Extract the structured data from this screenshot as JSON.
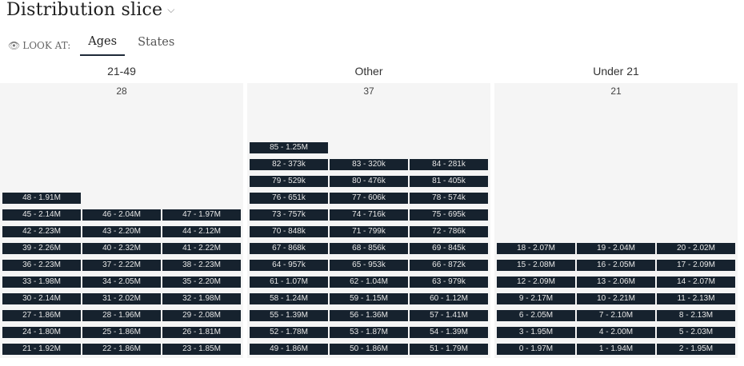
{
  "header": {
    "title": "Distribution slice",
    "caret_icon": "chevron-down-icon",
    "look_at_label": "LOOK AT:",
    "eye_icon": "eye-icon",
    "tabs": [
      {
        "label": "Ages",
        "active": true
      },
      {
        "label": "States",
        "active": false
      }
    ]
  },
  "colors": {
    "cell": "#16222e",
    "panel": "#f5f5f5",
    "accent": "#1e2a38"
  },
  "chart_data": {
    "type": "bar",
    "stacking": "grid-3-wide",
    "groups": [
      {
        "name": "21-49",
        "count": "28",
        "items": [
          {
            "label": "21 - 1.92M",
            "value": 1920000
          },
          {
            "label": "22 - 1.86M",
            "value": 1860000
          },
          {
            "label": "23 - 1.85M",
            "value": 1850000
          },
          {
            "label": "24 - 1.80M",
            "value": 1800000
          },
          {
            "label": "25 - 1.86M",
            "value": 1860000
          },
          {
            "label": "26 - 1.81M",
            "value": 1810000
          },
          {
            "label": "27 - 1.86M",
            "value": 1860000
          },
          {
            "label": "28 - 1.96M",
            "value": 1960000
          },
          {
            "label": "29 - 2.08M",
            "value": 2080000
          },
          {
            "label": "30 - 2.14M",
            "value": 2140000
          },
          {
            "label": "31 - 2.02M",
            "value": 2020000
          },
          {
            "label": "32 - 1.98M",
            "value": 1980000
          },
          {
            "label": "33 - 1.98M",
            "value": 1980000
          },
          {
            "label": "34 - 2.05M",
            "value": 2050000
          },
          {
            "label": "35 - 2.20M",
            "value": 2200000
          },
          {
            "label": "36 - 2.23M",
            "value": 2230000
          },
          {
            "label": "37 - 2.22M",
            "value": 2220000
          },
          {
            "label": "38 - 2.23M",
            "value": 2230000
          },
          {
            "label": "39 - 2.26M",
            "value": 2260000
          },
          {
            "label": "40 - 2.32M",
            "value": 2320000
          },
          {
            "label": "41 - 2.22M",
            "value": 2220000
          },
          {
            "label": "42 - 2.23M",
            "value": 2230000
          },
          {
            "label": "43 - 2.20M",
            "value": 2200000
          },
          {
            "label": "44 - 2.12M",
            "value": 2120000
          },
          {
            "label": "45 - 2.14M",
            "value": 2140000
          },
          {
            "label": "46 - 2.04M",
            "value": 2040000
          },
          {
            "label": "47 - 1.97M",
            "value": 1970000
          },
          {
            "label": "48 - 1.91M",
            "value": 1910000
          }
        ]
      },
      {
        "name": "Other",
        "count": "37",
        "items": [
          {
            "label": "49 - 1.86M",
            "value": 1860000
          },
          {
            "label": "50 - 1.86M",
            "value": 1860000
          },
          {
            "label": "51 - 1.79M",
            "value": 1790000
          },
          {
            "label": "52 - 1.78M",
            "value": 1780000
          },
          {
            "label": "53 - 1.87M",
            "value": 1870000
          },
          {
            "label": "54 - 1.39M",
            "value": 1390000
          },
          {
            "label": "55 - 1.39M",
            "value": 1390000
          },
          {
            "label": "56 - 1.36M",
            "value": 1360000
          },
          {
            "label": "57 - 1.41M",
            "value": 1410000
          },
          {
            "label": "58 - 1.24M",
            "value": 1240000
          },
          {
            "label": "59 - 1.15M",
            "value": 1150000
          },
          {
            "label": "60 - 1.12M",
            "value": 1120000
          },
          {
            "label": "61 - 1.07M",
            "value": 1070000
          },
          {
            "label": "62 - 1.04M",
            "value": 1040000
          },
          {
            "label": "63 - 979k",
            "value": 979000
          },
          {
            "label": "64 - 957k",
            "value": 957000
          },
          {
            "label": "65 - 953k",
            "value": 953000
          },
          {
            "label": "66 - 872k",
            "value": 872000
          },
          {
            "label": "67 - 868k",
            "value": 868000
          },
          {
            "label": "68 - 856k",
            "value": 856000
          },
          {
            "label": "69 - 845k",
            "value": 845000
          },
          {
            "label": "70 - 848k",
            "value": 848000
          },
          {
            "label": "71 - 799k",
            "value": 799000
          },
          {
            "label": "72 - 786k",
            "value": 786000
          },
          {
            "label": "73 - 757k",
            "value": 757000
          },
          {
            "label": "74 - 716k",
            "value": 716000
          },
          {
            "label": "75 - 695k",
            "value": 695000
          },
          {
            "label": "76 - 651k",
            "value": 651000
          },
          {
            "label": "77 - 606k",
            "value": 606000
          },
          {
            "label": "78 - 574k",
            "value": 574000
          },
          {
            "label": "79 - 529k",
            "value": 529000
          },
          {
            "label": "80 - 476k",
            "value": 476000
          },
          {
            "label": "81 - 405k",
            "value": 405000
          },
          {
            "label": "82 - 373k",
            "value": 373000
          },
          {
            "label": "83 - 320k",
            "value": 320000
          },
          {
            "label": "84 - 281k",
            "value": 281000
          },
          {
            "label": "85 - 1.25M",
            "value": 1250000
          }
        ]
      },
      {
        "name": "Under 21",
        "count": "21",
        "items": [
          {
            "label": "0 - 1.97M",
            "value": 1970000
          },
          {
            "label": "1 - 1.94M",
            "value": 1940000
          },
          {
            "label": "2 - 1.95M",
            "value": 1950000
          },
          {
            "label": "3 - 1.95M",
            "value": 1950000
          },
          {
            "label": "4 - 2.00M",
            "value": 2000000
          },
          {
            "label": "5 - 2.03M",
            "value": 2030000
          },
          {
            "label": "6 - 2.05M",
            "value": 2050000
          },
          {
            "label": "7 - 2.10M",
            "value": 2100000
          },
          {
            "label": "8 - 2.13M",
            "value": 2130000
          },
          {
            "label": "9 - 2.17M",
            "value": 2170000
          },
          {
            "label": "10 - 2.21M",
            "value": 2210000
          },
          {
            "label": "11 - 2.13M",
            "value": 2130000
          },
          {
            "label": "12 - 2.09M",
            "value": 2090000
          },
          {
            "label": "13 - 2.06M",
            "value": 2060000
          },
          {
            "label": "14 - 2.07M",
            "value": 2070000
          },
          {
            "label": "15 - 2.08M",
            "value": 2080000
          },
          {
            "label": "16 - 2.05M",
            "value": 2050000
          },
          {
            "label": "17 - 2.09M",
            "value": 2090000
          },
          {
            "label": "18 - 2.07M",
            "value": 2070000
          },
          {
            "label": "19 - 2.04M",
            "value": 2040000
          },
          {
            "label": "20 - 2.02M",
            "value": 2020000
          }
        ]
      }
    ]
  }
}
